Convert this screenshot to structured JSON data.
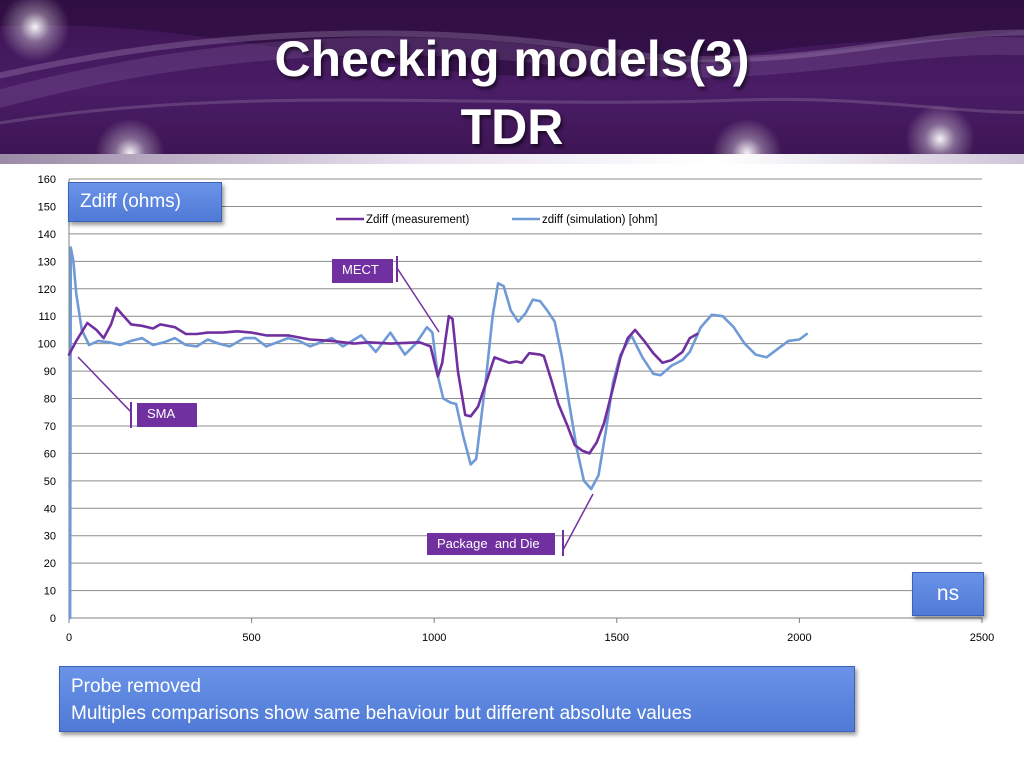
{
  "slide": {
    "title_line1": "Checking models(3)",
    "title_line2": "TDR",
    "colors": {
      "banner": "#4a1d66",
      "measurement": "#7030a0",
      "simulation": "#6f9ad6",
      "callout": "#7030a0",
      "note_box": "#5b84dc"
    }
  },
  "callouts": {
    "mect": "MECT",
    "sma": "SMA",
    "package": "Package  and Die"
  },
  "boxes": {
    "y_unit": "Zdiff (ohms)",
    "x_unit": "ns",
    "note_line1": "Probe removed",
    "note_line2": "Multiples comparisons show same behaviour but different absolute values"
  },
  "chart_data": {
    "type": "line",
    "xlim": [
      0,
      2500
    ],
    "ylim": [
      0,
      160
    ],
    "x_ticks": [
      0,
      500,
      1000,
      1500,
      2000,
      2500
    ],
    "y_ticks": [
      0,
      10,
      20,
      30,
      40,
      50,
      60,
      70,
      80,
      90,
      100,
      110,
      120,
      130,
      140,
      150,
      160
    ],
    "grid": true,
    "legend_position": "top-center",
    "series": [
      {
        "name": "Zdiff (measurement)",
        "color": "#7030a0",
        "points": [
          [
            0,
            96
          ],
          [
            20,
            101
          ],
          [
            50,
            107.5
          ],
          [
            75,
            105
          ],
          [
            95,
            102
          ],
          [
            115,
            107
          ],
          [
            130,
            113
          ],
          [
            150,
            110
          ],
          [
            170,
            107
          ],
          [
            200,
            106.5
          ],
          [
            230,
            105.5
          ],
          [
            250,
            107
          ],
          [
            290,
            106
          ],
          [
            320,
            103.5
          ],
          [
            350,
            103.5
          ],
          [
            380,
            104
          ],
          [
            420,
            104
          ],
          [
            460,
            104.5
          ],
          [
            500,
            104
          ],
          [
            540,
            103
          ],
          [
            600,
            103
          ],
          [
            660,
            101.5
          ],
          [
            720,
            101
          ],
          [
            780,
            100
          ],
          [
            820,
            100.5
          ],
          [
            880,
            100
          ],
          [
            960,
            100.5
          ],
          [
            990,
            99
          ],
          [
            1010,
            88
          ],
          [
            1022,
            93
          ],
          [
            1040,
            110
          ],
          [
            1050,
            109
          ],
          [
            1065,
            90
          ],
          [
            1085,
            74
          ],
          [
            1100,
            73.5
          ],
          [
            1120,
            77
          ],
          [
            1145,
            87
          ],
          [
            1165,
            95
          ],
          [
            1185,
            94
          ],
          [
            1205,
            93
          ],
          [
            1225,
            93.5
          ],
          [
            1240,
            93
          ],
          [
            1260,
            96.5
          ],
          [
            1290,
            96
          ],
          [
            1300,
            95.5
          ],
          [
            1320,
            87
          ],
          [
            1340,
            78
          ],
          [
            1365,
            70
          ],
          [
            1385,
            63
          ],
          [
            1405,
            61
          ],
          [
            1425,
            60
          ],
          [
            1445,
            64
          ],
          [
            1465,
            71
          ],
          [
            1490,
            84
          ],
          [
            1510,
            95
          ],
          [
            1530,
            102
          ],
          [
            1550,
            105
          ],
          [
            1575,
            101
          ],
          [
            1600,
            96.5
          ],
          [
            1625,
            93
          ],
          [
            1650,
            94
          ],
          [
            1680,
            97
          ],
          [
            1700,
            102
          ],
          [
            1720,
            103.5
          ]
        ]
      },
      {
        "name": "zdiff (simulation) [ohm]",
        "color": "#6f9ad6",
        "points": [
          [
            3,
            0
          ],
          [
            5,
            135
          ],
          [
            12,
            130
          ],
          [
            20,
            118
          ],
          [
            35,
            105
          ],
          [
            55,
            99.5
          ],
          [
            80,
            101
          ],
          [
            110,
            100.5
          ],
          [
            140,
            99.5
          ],
          [
            170,
            101
          ],
          [
            200,
            102
          ],
          [
            230,
            99.5
          ],
          [
            260,
            100.5
          ],
          [
            290,
            102
          ],
          [
            320,
            99.5
          ],
          [
            350,
            99
          ],
          [
            380,
            101.5
          ],
          [
            410,
            100
          ],
          [
            440,
            99
          ],
          [
            480,
            102
          ],
          [
            510,
            102
          ],
          [
            540,
            99
          ],
          [
            570,
            100.5
          ],
          [
            600,
            102
          ],
          [
            630,
            101
          ],
          [
            660,
            99
          ],
          [
            700,
            101
          ],
          [
            720,
            102
          ],
          [
            750,
            99
          ],
          [
            800,
            103
          ],
          [
            840,
            97
          ],
          [
            880,
            104
          ],
          [
            920,
            96
          ],
          [
            950,
            100
          ],
          [
            980,
            106
          ],
          [
            995,
            104
          ],
          [
            1010,
            88
          ],
          [
            1025,
            80
          ],
          [
            1045,
            78.5
          ],
          [
            1060,
            78
          ],
          [
            1080,
            66
          ],
          [
            1100,
            56
          ],
          [
            1115,
            58
          ],
          [
            1140,
            85
          ],
          [
            1160,
            110
          ],
          [
            1175,
            122
          ],
          [
            1190,
            121
          ],
          [
            1210,
            112
          ],
          [
            1230,
            108
          ],
          [
            1250,
            111
          ],
          [
            1270,
            116
          ],
          [
            1290,
            115.5
          ],
          [
            1310,
            112
          ],
          [
            1330,
            108
          ],
          [
            1350,
            95
          ],
          [
            1370,
            78
          ],
          [
            1390,
            62
          ],
          [
            1410,
            50
          ],
          [
            1430,
            47
          ],
          [
            1450,
            52
          ],
          [
            1470,
            68
          ],
          [
            1490,
            86
          ],
          [
            1510,
            96
          ],
          [
            1540,
            103
          ],
          [
            1570,
            95
          ],
          [
            1600,
            89
          ],
          [
            1620,
            88.5
          ],
          [
            1650,
            92
          ],
          [
            1680,
            94
          ],
          [
            1700,
            97
          ],
          [
            1730,
            106
          ],
          [
            1760,
            110.5
          ],
          [
            1790,
            110
          ],
          [
            1820,
            106
          ],
          [
            1850,
            100
          ],
          [
            1880,
            96
          ],
          [
            1910,
            95
          ],
          [
            1940,
            98
          ],
          [
            1970,
            101
          ],
          [
            2000,
            101.5
          ],
          [
            2020,
            103.5
          ]
        ]
      }
    ]
  }
}
